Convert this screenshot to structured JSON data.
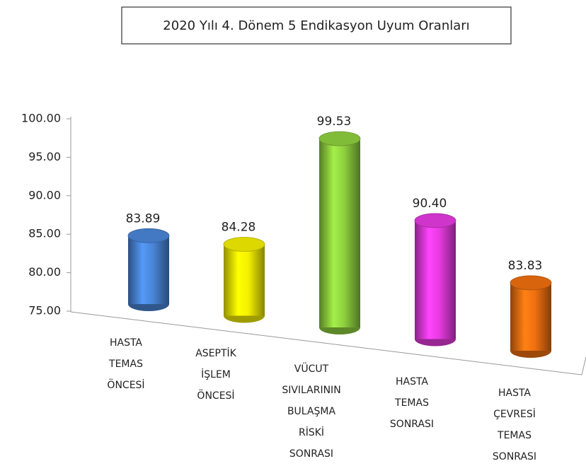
{
  "chart_data": {
    "type": "bar3d",
    "title": "2020 Yılı 4. Dönem 5 Endikasyon Uyum Oranları",
    "categories": [
      [
        "HASTA",
        "TEMAS",
        "ÖNCESİ"
      ],
      [
        "ASEPTİK",
        "İŞLEM",
        "ÖNCESİ"
      ],
      [
        "VÜCUT",
        "SIVILARININ",
        "BULAŞMA",
        "RİSKİ",
        "SONRASI"
      ],
      [
        "HASTA",
        "TEMAS",
        "SONRASI"
      ],
      [
        "HASTA",
        "ÇEVRESİ",
        "TEMAS",
        "SONRASI"
      ]
    ],
    "values": [
      83.89,
      84.28,
      99.53,
      90.4,
      83.83
    ],
    "value_labels": [
      "83.89",
      "84.28",
      "99.53",
      "90.40",
      "83.83"
    ],
    "colors": [
      "#4a86d8",
      "#f5f000",
      "#8fd13f",
      "#e63be0",
      "#f07010"
    ],
    "ylim": [
      75,
      100
    ],
    "yticks": [
      {
        "value": 75,
        "label": "75.00"
      },
      {
        "value": 80,
        "label": "80.00"
      },
      {
        "value": 85,
        "label": "85.00"
      },
      {
        "value": 90,
        "label": "90.00"
      },
      {
        "value": 95,
        "label": "95.00"
      },
      {
        "value": 100,
        "label": "100.00"
      }
    ]
  }
}
